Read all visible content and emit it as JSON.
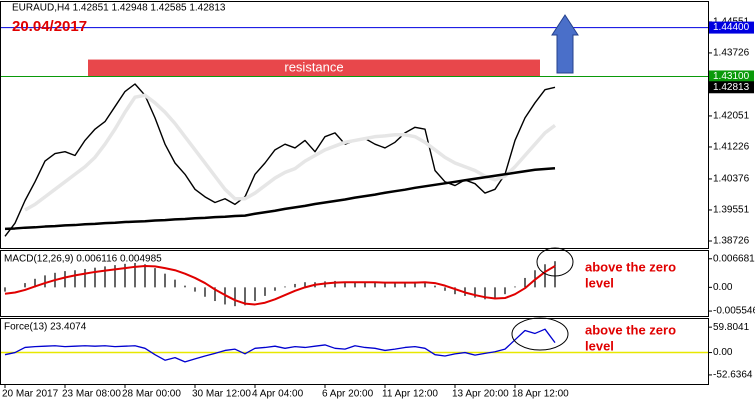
{
  "chart_data": [
    {
      "type": "line",
      "header": "EURAUD,H4  1.42851 1.42948 1.42585 1.42813",
      "date_note": "20.04/2017",
      "categories": [
        "20 Mar 2017",
        null,
        null,
        null,
        null,
        null,
        "23 Mar 08:00",
        null,
        null,
        null,
        null,
        null,
        "28 Mar 00:00",
        null,
        null,
        null,
        null,
        null,
        null,
        "30 Mar 12:00",
        null,
        null,
        null,
        null,
        null,
        "4 Apr 04:00",
        null,
        null,
        null,
        null,
        null,
        null,
        "6 Apr 20:00",
        null,
        null,
        null,
        null,
        null,
        "11 Apr 12:00",
        null,
        null,
        null,
        null,
        null,
        null,
        "13 Apr 20:00",
        null,
        null,
        null,
        null,
        null,
        "18 Apr 12:00",
        null,
        null,
        null,
        null
      ],
      "series": [
        {
          "color": "#000000",
          "width": 1.4,
          "values": [
            1.3885,
            1.392,
            1.398,
            1.403,
            1.4085,
            1.4105,
            1.411,
            1.41,
            1.414,
            1.417,
            1.419,
            1.423,
            1.427,
            1.429,
            1.426,
            1.42,
            1.413,
            1.408,
            1.405,
            1.401,
            1.399,
            1.3975,
            1.3985,
            1.397,
            1.399,
            1.405,
            1.408,
            1.4115,
            1.413,
            1.412,
            1.414,
            1.411,
            1.415,
            1.416,
            1.413,
            1.414,
            1.4145,
            1.413,
            1.412,
            1.4135,
            1.416,
            1.4175,
            1.417,
            1.406,
            1.403,
            1.402,
            1.4035,
            1.4025,
            1.4,
            1.401,
            1.405,
            1.414,
            1.42,
            1.424,
            1.4275,
            1.42813
          ]
        },
        {
          "color": "#e6e6e6",
          "width": 3.5,
          "values": [
            null,
            null,
            1.3955,
            1.397,
            1.399,
            1.401,
            1.403,
            1.405,
            1.407,
            1.4095,
            1.413,
            1.417,
            1.4215,
            1.4255,
            1.426,
            1.424,
            1.4215,
            1.4185,
            1.415,
            1.4115,
            1.408,
            1.4045,
            1.401,
            1.3985,
            1.3985,
            1.4,
            1.402,
            1.404,
            1.4055,
            1.4065,
            1.4085,
            1.41,
            1.4115,
            1.4125,
            1.4135,
            1.414,
            1.4145,
            1.415,
            1.4152,
            1.4155,
            1.4155,
            1.415,
            1.4135,
            1.4115,
            1.4095,
            1.408,
            1.407,
            1.406,
            1.4045,
            1.4035,
            1.4045,
            1.407,
            1.41,
            1.413,
            1.416,
            1.418
          ]
        },
        {
          "color": "#000000",
          "width": 2.5,
          "values": [
            1.3905,
            1.3906,
            1.3908,
            1.3909,
            1.3911,
            1.3912,
            1.3914,
            1.3915,
            1.3917,
            1.3918,
            1.392,
            1.3921,
            1.3923,
            1.3924,
            1.3925,
            1.3927,
            1.3928,
            1.393,
            1.3931,
            1.3933,
            1.3934,
            1.3936,
            1.3937,
            1.3939,
            1.394,
            1.3945,
            1.3949,
            1.3953,
            1.3958,
            1.3962,
            1.3966,
            1.3971,
            1.3975,
            1.3979,
            1.3983,
            1.3988,
            1.3992,
            1.3996,
            1.4001,
            1.4005,
            1.4009,
            1.4014,
            1.4018,
            1.4022,
            1.4026,
            1.403,
            1.4034,
            1.4038,
            1.4042,
            1.4046,
            1.405,
            1.4054,
            1.4058,
            1.4062,
            1.4064,
            1.4066
          ]
        }
      ],
      "ylim": [
        1.3854,
        1.4508
      ],
      "yticks": [
        1.44551,
        1.43726,
        1.42051,
        1.41226,
        1.40376,
        1.39551,
        1.38726
      ],
      "levels": [
        {
          "value": 1.444,
          "label": "1.44400",
          "color": "#0000e0"
        },
        {
          "value": 1.431,
          "label": "1.43100",
          "color": "#0a9a0a"
        },
        {
          "value": 1.42813,
          "label": "1.42813",
          "color": "#000000"
        }
      ],
      "zone": {
        "label": "resistance",
        "ylim": [
          1.431,
          1.4355
        ],
        "color": "#e8474b"
      }
    },
    {
      "type": "macd",
      "header": "MACD(12,26,9) 0.006116 0.004985",
      "series": [
        {
          "type": "bar",
          "color": "#000000",
          "values": [
            -0.001,
            0.0,
            0.001,
            0.002,
            0.0028,
            0.0034,
            0.0038,
            0.004,
            0.0043,
            0.0046,
            0.0049,
            0.0052,
            0.0055,
            0.0057,
            0.0054,
            0.0045,
            0.0032,
            0.0018,
            0.0004,
            -0.001,
            -0.0022,
            -0.0032,
            -0.004,
            -0.0044,
            -0.0042,
            -0.0032,
            -0.002,
            -0.0008,
            0.0002,
            0.0008,
            0.0012,
            0.0012,
            0.0014,
            0.0015,
            0.0013,
            0.0012,
            0.0012,
            0.0011,
            0.001,
            0.001,
            0.0011,
            0.0013,
            0.0013,
            0.0004,
            -0.0008,
            -0.0016,
            -0.002,
            -0.0024,
            -0.0028,
            -0.0026,
            -0.0016,
            0.0002,
            0.0022,
            0.004,
            0.0054,
            0.006116
          ]
        },
        {
          "type": "line",
          "color": "#e00000",
          "width": 2,
          "values": [
            -0.0015,
            -0.0012,
            -0.0006,
            0.0002,
            0.001,
            0.0017,
            0.0023,
            0.0028,
            0.0032,
            0.0036,
            0.0039,
            0.0042,
            0.0045,
            0.0048,
            0.005,
            0.0049,
            0.0045,
            0.004,
            0.0032,
            0.0022,
            0.001,
            -0.0005,
            -0.0018,
            -0.003,
            -0.0038,
            -0.004,
            -0.0036,
            -0.0028,
            -0.0018,
            -0.0008,
            0.0,
            0.0006,
            0.0009,
            0.0011,
            0.0012,
            0.0012,
            0.0012,
            0.0012,
            0.0011,
            0.0011,
            0.0011,
            0.0011,
            0.0012,
            0.001,
            0.0004,
            -0.0004,
            -0.0012,
            -0.0018,
            -0.0023,
            -0.0026,
            -0.0025,
            -0.0016,
            -0.0002,
            0.0018,
            0.0036,
            0.004985
          ]
        }
      ],
      "ylim": [
        -0.0067,
        0.0085
      ],
      "yticks": [
        0.006681,
        {
          "value": 0,
          "label": "0.00"
        },
        -0.005546
      ],
      "note": [
        "above the zero",
        "level"
      ]
    },
    {
      "type": "force",
      "header": "Force(13) 23.4074",
      "series": [
        {
          "type": "line",
          "color": "#0000d0",
          "width": 1.3,
          "values": [
            -5,
            0,
            12,
            14,
            15,
            16,
            14,
            15,
            16,
            15,
            16,
            14,
            15,
            16,
            10,
            -5,
            -18,
            -12,
            -22,
            -15,
            -8,
            -2,
            5,
            8,
            -3,
            10,
            12,
            15,
            10,
            14,
            12,
            15,
            18,
            10,
            8,
            16,
            12,
            10,
            5,
            8,
            12,
            14,
            10,
            -5,
            -8,
            -3,
            0,
            -6,
            -2,
            2,
            8,
            30,
            52,
            45,
            55,
            23.4074
          ]
        }
      ],
      "ylim": [
        -74,
        79
      ],
      "yticks": [
        59.8041,
        {
          "value": 0,
          "label": "0.00"
        },
        -52.6364
      ],
      "zero_line_color": "#e8e800",
      "note": [
        "above the zero",
        "level"
      ]
    }
  ]
}
